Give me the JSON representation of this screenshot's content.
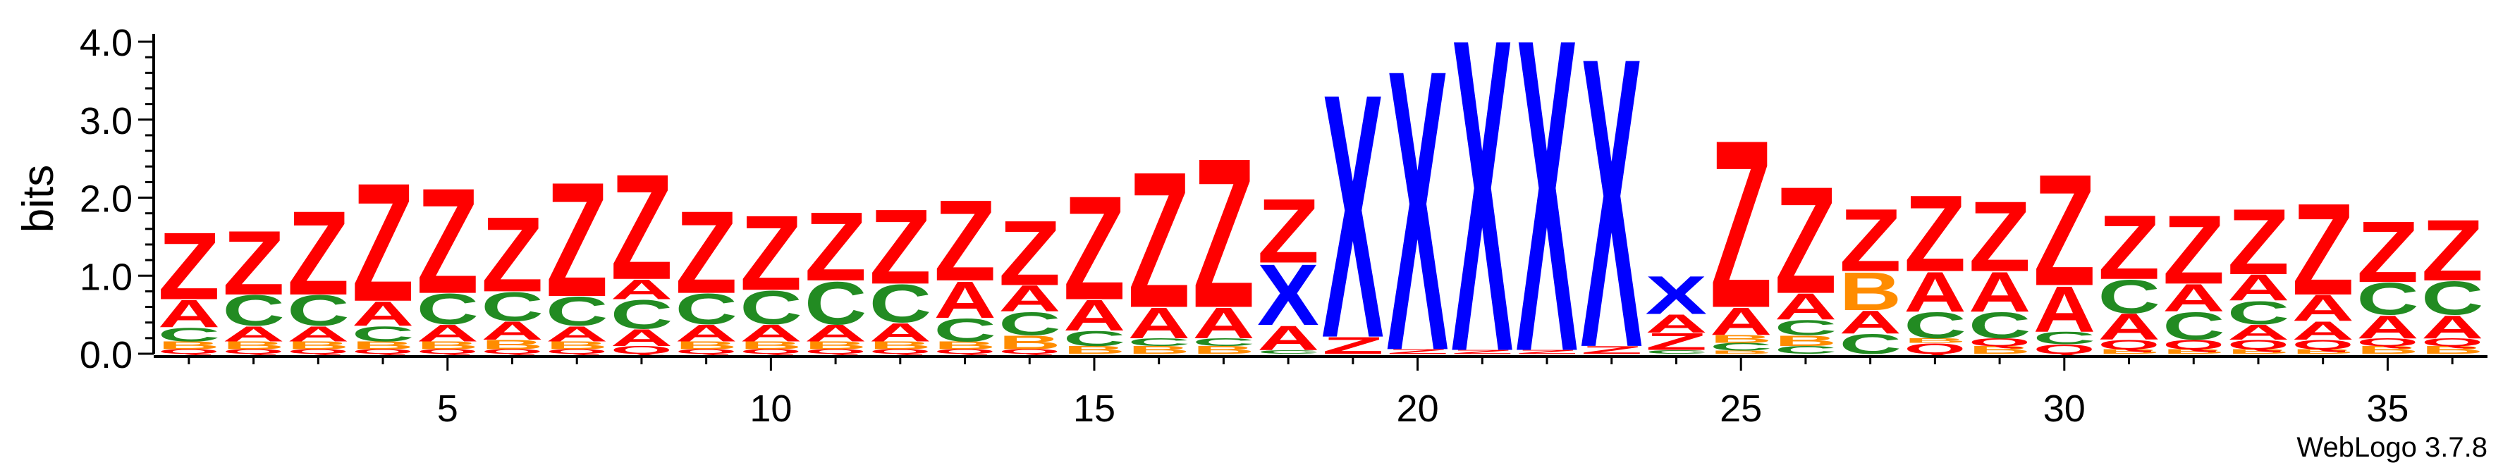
{
  "chart_data": {
    "type": "sequence-logo",
    "ylabel": "bits",
    "ylim": [
      0,
      4.1
    ],
    "yticks": [
      0.0,
      1.0,
      2.0,
      3.0,
      4.0
    ],
    "ytick_labels": [
      "0.0",
      "1.0",
      "2.0",
      "3.0",
      "4.0"
    ],
    "xlim": [
      0.5,
      36.5
    ],
    "xticks": [
      5,
      10,
      15,
      20,
      25,
      30,
      35
    ],
    "xtick_labels": [
      "5",
      "10",
      "15",
      "20",
      "25",
      "30",
      "35"
    ],
    "colors": {
      "Z": "#ff0000",
      "A": "#ff0000",
      "Q": "#ff0000",
      "C": "#228b22",
      "B": "#ff8c00",
      "X": "#0000ff"
    },
    "columns": [
      [
        [
          "Q",
          0.06
        ],
        [
          "B",
          0.1
        ],
        [
          "C",
          0.18
        ],
        [
          "A",
          0.36
        ],
        [
          "Z",
          0.88
        ]
      ],
      [
        [
          "Q",
          0.06
        ],
        [
          "B",
          0.1
        ],
        [
          "A",
          0.2
        ],
        [
          "C",
          0.4
        ],
        [
          "Z",
          0.84
        ]
      ],
      [
        [
          "Q",
          0.06
        ],
        [
          "B",
          0.1
        ],
        [
          "A",
          0.2
        ],
        [
          "C",
          0.4
        ],
        [
          "Z",
          1.1
        ]
      ],
      [
        [
          "Q",
          0.06
        ],
        [
          "B",
          0.1
        ],
        [
          "C",
          0.2
        ],
        [
          "A",
          0.32
        ],
        [
          "Z",
          1.55
        ]
      ],
      [
        [
          "Q",
          0.06
        ],
        [
          "B",
          0.1
        ],
        [
          "A",
          0.22
        ],
        [
          "C",
          0.4
        ],
        [
          "Z",
          1.38
        ]
      ],
      [
        [
          "Q",
          0.06
        ],
        [
          "B",
          0.12
        ],
        [
          "A",
          0.24
        ],
        [
          "C",
          0.38
        ],
        [
          "Z",
          0.98
        ]
      ],
      [
        [
          "Q",
          0.06
        ],
        [
          "B",
          0.1
        ],
        [
          "A",
          0.2
        ],
        [
          "C",
          0.38
        ],
        [
          "Z",
          1.5
        ]
      ],
      [
        [
          "Q",
          0.1
        ],
        [
          "A",
          0.22
        ],
        [
          "C",
          0.38
        ],
        [
          "A",
          0.26
        ],
        [
          "Z",
          1.38
        ]
      ],
      [
        [
          "Q",
          0.06
        ],
        [
          "B",
          0.1
        ],
        [
          "A",
          0.22
        ],
        [
          "C",
          0.4
        ],
        [
          "Z",
          1.08
        ]
      ],
      [
        [
          "Q",
          0.06
        ],
        [
          "B",
          0.1
        ],
        [
          "A",
          0.22
        ],
        [
          "C",
          0.44
        ],
        [
          "Z",
          0.98
        ]
      ],
      [
        [
          "Q",
          0.06
        ],
        [
          "B",
          0.1
        ],
        [
          "A",
          0.22
        ],
        [
          "C",
          0.56
        ],
        [
          "Z",
          0.9
        ]
      ],
      [
        [
          "Q",
          0.06
        ],
        [
          "B",
          0.1
        ],
        [
          "A",
          0.24
        ],
        [
          "C",
          0.5
        ],
        [
          "Z",
          0.98
        ]
      ],
      [
        [
          "Q",
          0.06
        ],
        [
          "B",
          0.1
        ],
        [
          "C",
          0.3
        ],
        [
          "A",
          0.48
        ],
        [
          "Z",
          1.06
        ]
      ],
      [
        [
          "Q",
          0.06
        ],
        [
          "B",
          0.18
        ],
        [
          "C",
          0.3
        ],
        [
          "A",
          0.34
        ],
        [
          "Z",
          0.85
        ]
      ],
      [
        [
          "B",
          0.1
        ],
        [
          "C",
          0.2
        ],
        [
          "A",
          0.4
        ],
        [
          "Z",
          1.36
        ]
      ],
      [
        [
          "B",
          0.1
        ],
        [
          "C",
          0.1
        ],
        [
          "A",
          0.4
        ],
        [
          "Z",
          1.78
        ]
      ],
      [
        [
          "B",
          0.1
        ],
        [
          "C",
          0.1
        ],
        [
          "A",
          0.4
        ],
        [
          "Z",
          1.96
        ]
      ],
      [
        [
          "C",
          0.05
        ],
        [
          "A",
          0.32
        ],
        [
          "X",
          0.8
        ],
        [
          "Z",
          0.84
        ]
      ],
      [
        [
          "Z",
          0.22
        ],
        [
          "X",
          3.2
        ]
      ],
      [
        [
          "Z",
          0.06
        ],
        [
          "X",
          3.68
        ]
      ],
      [
        [
          "Z",
          0.05
        ],
        [
          "X",
          4.1
        ]
      ],
      [
        [
          "Z",
          0.05
        ],
        [
          "X",
          4.1
        ]
      ],
      [
        [
          "Z",
          0.1
        ],
        [
          "X",
          3.8
        ]
      ],
      [
        [
          "C",
          0.05
        ],
        [
          "Z",
          0.22
        ],
        [
          "A",
          0.24
        ],
        [
          "X",
          0.5
        ]
      ],
      [
        [
          "B",
          0.04
        ],
        [
          "C",
          0.1
        ],
        [
          "B",
          0.1
        ],
        [
          "A",
          0.36
        ],
        [
          "Z",
          2.2
        ]
      ],
      [
        [
          "C",
          0.1
        ],
        [
          "B",
          0.14
        ],
        [
          "C",
          0.2
        ],
        [
          "A",
          0.34
        ],
        [
          "Z",
          1.4
        ]
      ],
      [
        [
          "C",
          0.26
        ],
        [
          "A",
          0.3
        ],
        [
          "B",
          0.5
        ],
        [
          "Z",
          0.82
        ]
      ],
      [
        [
          "Q",
          0.14
        ],
        [
          "B",
          0.06
        ],
        [
          "C",
          0.34
        ],
        [
          "A",
          0.52
        ],
        [
          "Z",
          1.0
        ]
      ],
      [
        [
          "B",
          0.1
        ],
        [
          "Q",
          0.1
        ],
        [
          "C",
          0.34
        ],
        [
          "A",
          0.52
        ],
        [
          "Z",
          0.92
        ]
      ],
      [
        [
          "Q",
          0.12
        ],
        [
          "C",
          0.16
        ],
        [
          "A",
          0.6
        ],
        [
          "Z",
          1.46
        ]
      ],
      [
        [
          "B",
          0.06
        ],
        [
          "Q",
          0.12
        ],
        [
          "A",
          0.34
        ],
        [
          "C",
          0.44
        ],
        [
          "Z",
          0.84
        ]
      ],
      [
        [
          "B",
          0.06
        ],
        [
          "Q",
          0.12
        ],
        [
          "C",
          0.36
        ],
        [
          "A",
          0.36
        ],
        [
          "Z",
          0.9
        ]
      ],
      [
        [
          "B",
          0.06
        ],
        [
          "Q",
          0.12
        ],
        [
          "A",
          0.2
        ],
        [
          "C",
          0.3
        ],
        [
          "A",
          0.34
        ],
        [
          "Z",
          0.86
        ]
      ],
      [
        [
          "B",
          0.06
        ],
        [
          "Q",
          0.12
        ],
        [
          "A",
          0.24
        ],
        [
          "A",
          0.34
        ],
        [
          "Z",
          1.2
        ]
      ],
      [
        [
          "B",
          0.1
        ],
        [
          "Q",
          0.1
        ],
        [
          "A",
          0.3
        ],
        [
          "C",
          0.42
        ],
        [
          "Z",
          0.8
        ]
      ],
      [
        [
          "B",
          0.1
        ],
        [
          "Q",
          0.1
        ],
        [
          "A",
          0.3
        ],
        [
          "C",
          0.44
        ],
        [
          "Z",
          0.8
        ]
      ]
    ]
  },
  "footer": {
    "watermark": "WebLogo 3.7.8"
  }
}
